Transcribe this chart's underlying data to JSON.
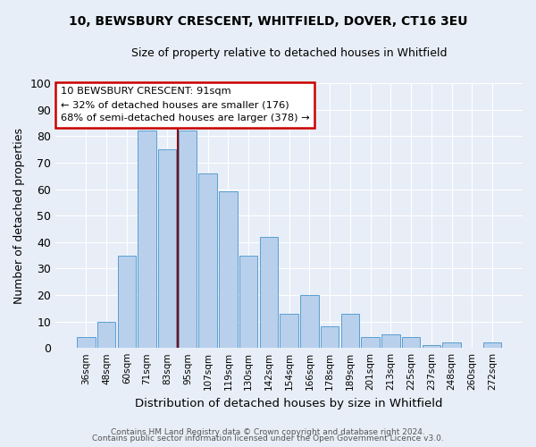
{
  "title": "10, BEWSBURY CRESCENT, WHITFIELD, DOVER, CT16 3EU",
  "subtitle": "Size of property relative to detached houses in Whitfield",
  "xlabel": "Distribution of detached houses by size in Whitfield",
  "ylabel": "Number of detached properties",
  "bar_labels": [
    "36sqm",
    "48sqm",
    "60sqm",
    "71sqm",
    "83sqm",
    "95sqm",
    "107sqm",
    "119sqm",
    "130sqm",
    "142sqm",
    "154sqm",
    "166sqm",
    "178sqm",
    "189sqm",
    "201sqm",
    "213sqm",
    "225sqm",
    "237sqm",
    "248sqm",
    "260sqm",
    "272sqm"
  ],
  "bar_values": [
    4,
    10,
    35,
    82,
    75,
    82,
    66,
    59,
    35,
    42,
    13,
    20,
    8,
    13,
    4,
    5,
    4,
    1,
    2,
    0,
    2
  ],
  "bar_color": "#b8d0eb",
  "bar_edge_color": "#5a9fd4",
  "bg_color": "#e8eef7",
  "grid_color": "#ffffff",
  "vline_x_index": 4.5,
  "vline_color": "#8b0000",
  "annotation_title": "10 BEWSBURY CRESCENT: 91sqm",
  "annotation_line1": "← 32% of detached houses are smaller (176)",
  "annotation_line2": "68% of semi-detached houses are larger (378) →",
  "annotation_box_edge": "#cc0000",
  "ylim": [
    0,
    100
  ],
  "yticks": [
    0,
    10,
    20,
    30,
    40,
    50,
    60,
    70,
    80,
    90,
    100
  ],
  "footer1": "Contains HM Land Registry data © Crown copyright and database right 2024.",
  "footer2": "Contains public sector information licensed under the Open Government Licence v3.0."
}
